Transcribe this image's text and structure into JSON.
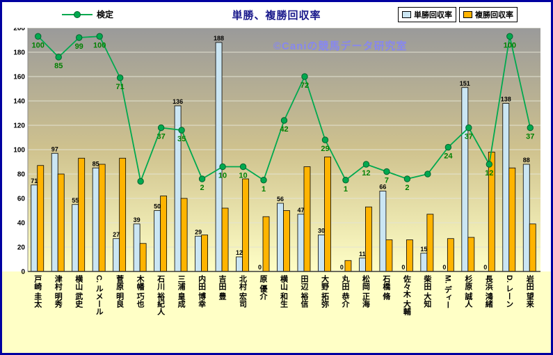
{
  "chart_data": {
    "type": "bar",
    "subtype": "bar-line-combo",
    "title": "単勝、複勝回収率",
    "watermark": "©Caniの競馬データ研究室",
    "ylim": [
      0,
      200
    ],
    "ytick_step": 20,
    "grid": true,
    "legend": {
      "line": "検定",
      "bar1": "単勝回収率",
      "bar2": "複勝回収率"
    },
    "colors": {
      "bar1": "#CBE6F3",
      "bar2": "#FFB400",
      "line": "#00A94F",
      "line_label": "#008000",
      "title": "#1A1A8C",
      "watermark": "#8787EF",
      "plot_top": "#9A9A9A",
      "plot_mid": "#CFC28E",
      "plot_bottom": "#FFFFC6"
    },
    "categories": [
      "戸崎 圭太",
      "津村 明秀",
      "横山 武史",
      "C. ルメール",
      "菅原 明良",
      "木幡 巧也",
      "石川 裕紀人",
      "三浦 皇成",
      "内田 博幸",
      "吉田 豊",
      "北村 宏司",
      "原 優介",
      "横山 和生",
      "田辺 裕信",
      "大野 拓弥",
      "丸田 恭介",
      "松岡 正海",
      "石橋 脩",
      "佐々木 大輔",
      "柴田 大知",
      "M. ディー",
      "杉原 誠人",
      "長浜 鴻緒",
      "D. レーン",
      "岩田 望来"
    ],
    "series": [
      {
        "name": "単勝回収率",
        "type": "bar",
        "show_labels": true,
        "values": [
          71,
          97,
          55,
          85,
          27,
          39,
          50,
          136,
          29,
          188,
          12,
          0,
          56,
          47,
          30,
          0,
          11,
          66,
          0,
          15,
          0,
          151,
          0,
          138,
          88
        ]
      },
      {
        "name": "複勝回収率",
        "type": "bar",
        "show_labels": false,
        "values": [
          87,
          80,
          93,
          88,
          93,
          23,
          62,
          60,
          30,
          52,
          76,
          45,
          50,
          86,
          94,
          9,
          53,
          26,
          26,
          47,
          27,
          28,
          98,
          85,
          39
        ]
      },
      {
        "name": "検定",
        "type": "line",
        "labels": [
          "100",
          "85",
          "99",
          "100",
          "71",
          "",
          "37",
          "35",
          "2",
          "10",
          "10",
          "1",
          "42",
          "72",
          "29",
          "1",
          "12",
          "7",
          "2",
          "",
          "24",
          "37",
          "12",
          "100",
          "37"
        ],
        "plotted": [
          193,
          176,
          192,
          193,
          159,
          74,
          118,
          116,
          76,
          86,
          86,
          75,
          124,
          160,
          108,
          75,
          88,
          82,
          76,
          80,
          102,
          118,
          88,
          193,
          118
        ]
      }
    ]
  }
}
